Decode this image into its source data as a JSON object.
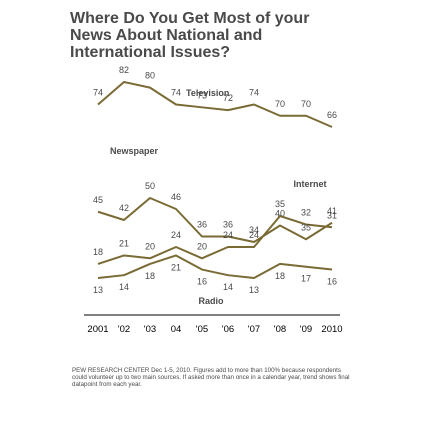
{
  "title": {
    "line1": "Where Do You Get Most of your",
    "line2": "News About National and",
    "line3": "International Issues?"
  },
  "footnote": "PEW RESEARCH CENTER Dec 1-5, 2010. Figures add to more than 100% because respondents could volunteer up to two main sources. If asked more than once in a calendar year, trend shows final datapoint from each year.",
  "colors": {
    "line": "#7a6a34",
    "text": "#4a4a4a",
    "axis": "#000000"
  },
  "chart_data": {
    "type": "line",
    "x": [
      "2001",
      "2002",
      "2003",
      "2004",
      "2005",
      "2006",
      "2007",
      "2008",
      "2009",
      "2010"
    ],
    "x_tick_labels": [
      "2001",
      "'02",
      "'03",
      "04",
      "'05",
      "'06",
      "'07",
      "'08",
      "'09",
      "2010"
    ],
    "series": [
      {
        "name": "Television",
        "values": [
          74,
          82,
          80,
          74,
          73,
          72,
          74,
          70,
          70,
          66
        ]
      },
      {
        "name": "Newspaper",
        "values": [
          45,
          42,
          50,
          46,
          36,
          36,
          34,
          40,
          35,
          41
        ]
      },
      {
        "name": "Internet",
        "values": [
          18,
          21,
          20,
          24,
          20,
          24,
          24,
          35,
          32,
          31
        ]
      },
      {
        "name": "Radio",
        "values": [
          13,
          14,
          18,
          21,
          16,
          14,
          13,
          18,
          17,
          16
        ]
      }
    ],
    "grid": false,
    "legend": "inline labels"
  }
}
